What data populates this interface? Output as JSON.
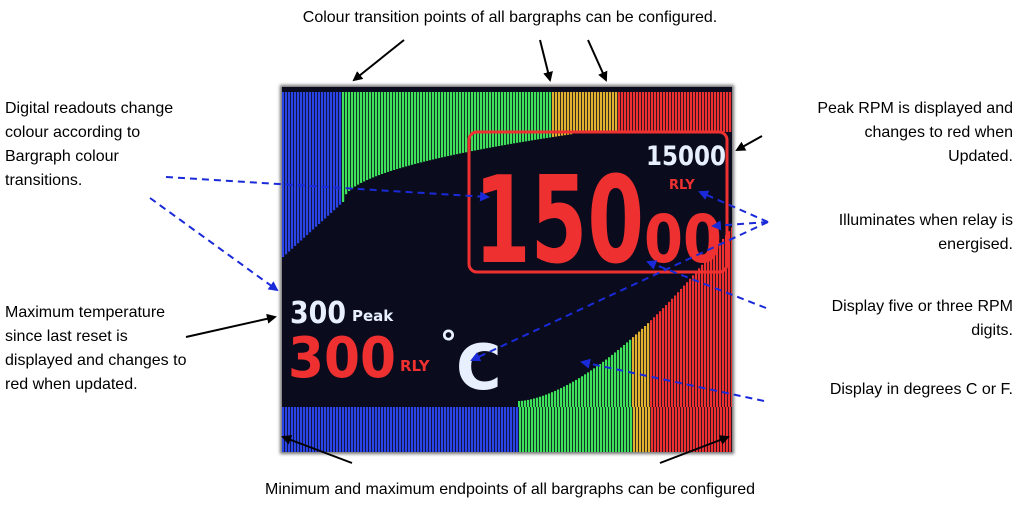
{
  "annotations": {
    "top_caption": "Colour transition points of all bargraphs can be configured.",
    "bottom_caption": "Minimum and maximum endpoints of all bargraphs can be configured",
    "digital_readouts": [
      "Digital readouts change",
      "colour according to",
      "Bargraph colour",
      "transitions."
    ],
    "max_temperature": [
      "Maximum temperature",
      "since last reset is",
      "displayed and changes to",
      "red when updated."
    ],
    "peak_rpm": [
      "Peak RPM is displayed and",
      "changes to red when",
      "Updated."
    ],
    "relay": [
      "Illuminates when relay is",
      "energised."
    ],
    "rpm_digits": [
      "Display five or three RPM",
      "digits."
    ],
    "degrees": "Display in degrees C or F."
  },
  "display": {
    "rpm_value": "150",
    "rpm_small_value": "00",
    "peak_rpm_value": "15000",
    "rpm_relay_label": "RLY",
    "peak_temp_value": "300",
    "peak_label": "Peak",
    "temp_value": "300",
    "temp_relay_label": "RLY",
    "unit_degree": "°",
    "unit_letter": "C"
  },
  "colors": {
    "blue": "#2a44e6",
    "green": "#3ee25a",
    "amber": "#e2b22e",
    "red": "#ef3030",
    "white": "#e8f0ff",
    "arrow_blue": "#1a2ad8",
    "screen_bg": "#0a0c1d"
  }
}
